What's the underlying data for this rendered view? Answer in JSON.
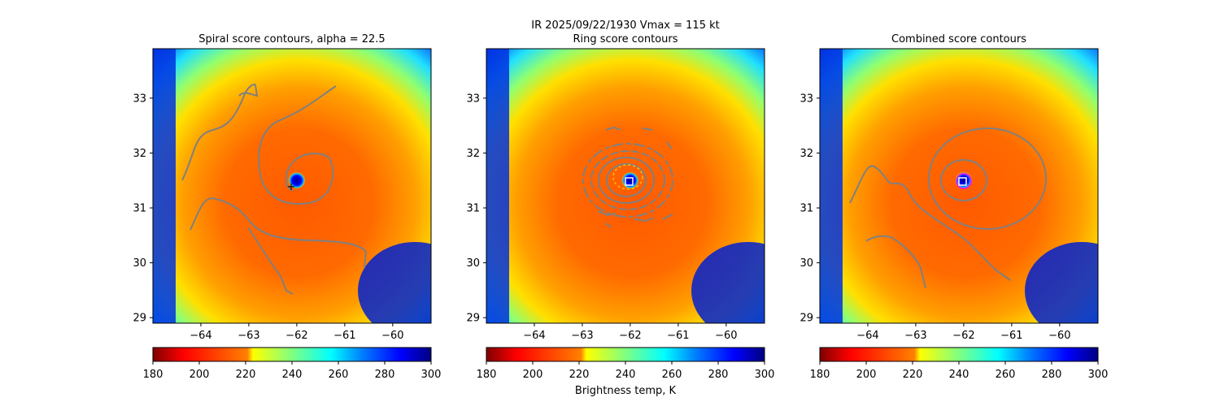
{
  "figure": {
    "suptitle_line1": "IR  2025/09/22/1930    Vmax = 115 kt",
    "colorbar_label": "Brightness temp, K"
  },
  "chart_data": [
    {
      "type": "heatmap",
      "title": "Spiral score contours, alpha = 22.5",
      "xlim": [
        -65.0,
        -59.2
      ],
      "ylim": [
        28.9,
        33.9
      ],
      "xticks": [
        -64,
        -63,
        -62,
        -61,
        -60
      ],
      "yticks": [
        29,
        30,
        31,
        32,
        33
      ],
      "storm_center": [
        -61.95,
        31.45
      ],
      "eye": {
        "center": [
          -62.0,
          31.5
        ],
        "radius_deg": 0.15
      },
      "center_marker": "plus",
      "colorbar": {
        "vmin": 180,
        "vmax": 300,
        "ticks": [
          180,
          200,
          220,
          240,
          260,
          280,
          300
        ],
        "label": ""
      }
    },
    {
      "type": "heatmap",
      "title": "Ring score contours",
      "xlim": [
        -65.0,
        -59.2
      ],
      "ylim": [
        28.9,
        33.9
      ],
      "xticks": [
        -64,
        -63,
        -62,
        -61,
        -60
      ],
      "yticks": [
        29,
        30,
        31,
        32,
        33
      ],
      "storm_center": [
        -61.95,
        31.45
      ],
      "eye": {
        "center": [
          -62.0,
          31.5
        ],
        "radius_deg": 0.15
      },
      "center_marker": "square",
      "colorbar": {
        "vmin": 180,
        "vmax": 300,
        "ticks": [
          180,
          200,
          220,
          240,
          260,
          280,
          300
        ],
        "label": "Brightness temp, K"
      }
    },
    {
      "type": "heatmap",
      "title": "Combined score contours",
      "xlim": [
        -65.0,
        -59.2
      ],
      "ylim": [
        28.9,
        33.9
      ],
      "xticks": [
        -64,
        -63,
        -62,
        -61,
        -60
      ],
      "yticks": [
        29,
        30,
        31,
        32,
        33
      ],
      "storm_center": [
        -61.95,
        31.45
      ],
      "eye": {
        "center": [
          -62.0,
          31.5
        ],
        "radius_deg": 0.15
      },
      "center_marker": "square",
      "colorbar": {
        "vmin": 180,
        "vmax": 300,
        "ticks": [
          180,
          200,
          220,
          240,
          260,
          280,
          300
        ],
        "label": ""
      }
    }
  ],
  "colors": {
    "contour": "#808080",
    "jet_r": [
      "#800000",
      "#ff0000",
      "#ff8000",
      "#ffff00",
      "#80ff80",
      "#00ffff",
      "#0080ff",
      "#0000ff",
      "#000080"
    ]
  }
}
